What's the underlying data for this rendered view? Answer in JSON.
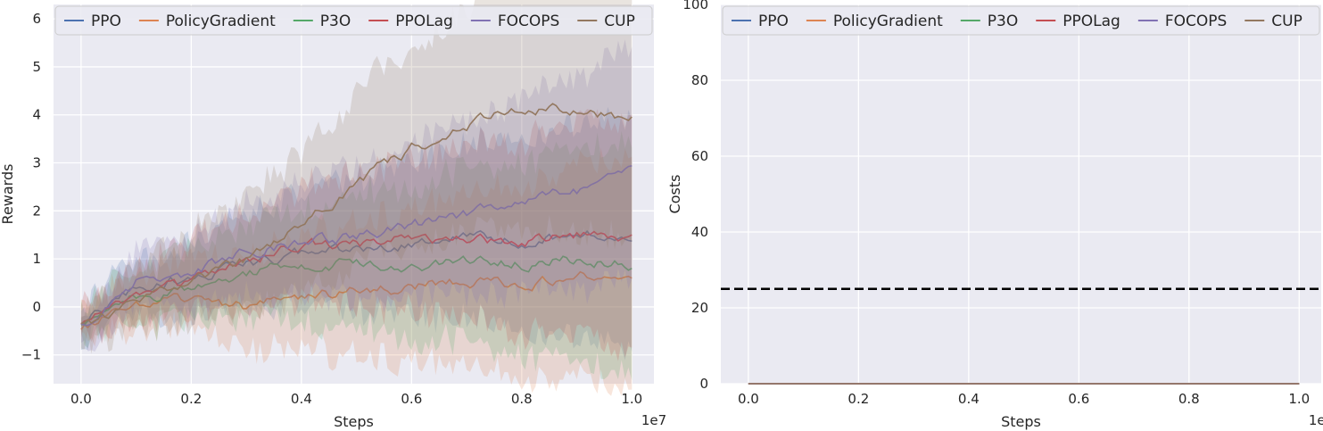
{
  "chart_data": [
    {
      "type": "line",
      "xlabel": "Steps",
      "ylabel": "Rewards",
      "x_multiplier_label": "1e7",
      "xlim": [
        -0.05,
        1.04
      ],
      "ylim": [
        -1.6,
        6.3
      ],
      "xticks": [
        0.0,
        0.2,
        0.4,
        0.6,
        0.8,
        1.0
      ],
      "xtick_labels": [
        "0.0",
        "0.2",
        "0.4",
        "0.6",
        "0.8",
        "1.0"
      ],
      "yticks": [
        -1,
        0,
        1,
        2,
        3,
        4,
        5,
        6
      ],
      "ytick_labels": [
        "−1",
        "0",
        "1",
        "2",
        "3",
        "4",
        "5",
        "6"
      ],
      "grid": true,
      "legend_position": "top",
      "shaded_band": "min/max range around each series",
      "series": [
        {
          "name": "PPO",
          "color": "#4c72b0",
          "x": [
            0,
            0.1,
            0.2,
            0.3,
            0.4,
            0.5,
            0.6,
            0.7,
            0.8,
            0.9,
            1.0
          ],
          "values": [
            -0.4,
            0.4,
            0.6,
            0.9,
            1.1,
            1.2,
            1.3,
            1.4,
            1.4,
            1.5,
            1.5
          ]
        },
        {
          "name": "PolicyGradient",
          "color": "#dd8452",
          "x": [
            0,
            0.1,
            0.2,
            0.3,
            0.4,
            0.5,
            0.6,
            0.7,
            0.8,
            0.9,
            1.0
          ],
          "values": [
            -0.5,
            0.1,
            0.1,
            0.0,
            0.2,
            0.3,
            0.4,
            0.5,
            0.5,
            0.7,
            0.6
          ]
        },
        {
          "name": "P3O",
          "color": "#55a868",
          "x": [
            0,
            0.1,
            0.2,
            0.3,
            0.4,
            0.5,
            0.6,
            0.7,
            0.8,
            0.9,
            1.0
          ],
          "values": [
            -0.4,
            0.2,
            0.4,
            0.7,
            0.9,
            0.9,
            0.8,
            0.9,
            0.9,
            1.0,
            0.9
          ]
        },
        {
          "name": "PPOLag",
          "color": "#c44e52",
          "x": [
            0,
            0.1,
            0.2,
            0.3,
            0.4,
            0.5,
            0.6,
            0.7,
            0.8,
            0.9,
            1.0
          ],
          "values": [
            -0.4,
            0.3,
            0.5,
            1.0,
            1.3,
            1.3,
            1.4,
            1.4,
            1.3,
            1.5,
            1.5
          ]
        },
        {
          "name": "FOCOPS",
          "color": "#8172b3",
          "x": [
            0,
            0.1,
            0.2,
            0.3,
            0.4,
            0.5,
            0.6,
            0.7,
            0.8,
            0.9,
            1.0
          ],
          "values": [
            -0.4,
            0.5,
            0.7,
            1.2,
            1.3,
            1.5,
            1.7,
            1.9,
            2.2,
            2.4,
            2.75
          ]
        },
        {
          "name": "CUP",
          "color": "#937860",
          "x": [
            0,
            0.1,
            0.2,
            0.3,
            0.4,
            0.5,
            0.6,
            0.7,
            0.8,
            0.9,
            1.0
          ],
          "values": [
            -0.4,
            0.1,
            0.5,
            1.0,
            1.7,
            2.6,
            3.3,
            3.8,
            4.1,
            4.1,
            3.9
          ]
        }
      ]
    },
    {
      "type": "line",
      "xlabel": "Steps",
      "ylabel": "Costs",
      "x_multiplier_label": "1e7",
      "xlim": [
        -0.05,
        1.04
      ],
      "ylim": [
        0,
        100
      ],
      "xticks": [
        0.0,
        0.2,
        0.4,
        0.6,
        0.8,
        1.0
      ],
      "xtick_labels": [
        "0.0",
        "0.2",
        "0.4",
        "0.6",
        "0.8",
        "1.0"
      ],
      "yticks": [
        0,
        20,
        40,
        60,
        80,
        100
      ],
      "ytick_labels": [
        "0",
        "20",
        "40",
        "60",
        "80",
        "100"
      ],
      "grid": true,
      "legend_position": "top",
      "threshold": {
        "value": 25,
        "style": "dashed",
        "color": "#000000"
      },
      "series": [
        {
          "name": "PPO",
          "color": "#4c72b0",
          "x": [
            0,
            1.0
          ],
          "values": [
            0,
            0
          ]
        },
        {
          "name": "PolicyGradient",
          "color": "#dd8452",
          "x": [
            0,
            1.0
          ],
          "values": [
            0,
            0
          ]
        },
        {
          "name": "P3O",
          "color": "#55a868",
          "x": [
            0,
            1.0
          ],
          "values": [
            0,
            0
          ]
        },
        {
          "name": "PPOLag",
          "color": "#c44e52",
          "x": [
            0,
            1.0
          ],
          "values": [
            0,
            0
          ]
        },
        {
          "name": "FOCOPS",
          "color": "#8172b3",
          "x": [
            0,
            1.0
          ],
          "values": [
            0,
            0
          ]
        },
        {
          "name": "CUP",
          "color": "#937860",
          "x": [
            0,
            1.0
          ],
          "values": [
            0,
            0
          ]
        }
      ]
    }
  ]
}
